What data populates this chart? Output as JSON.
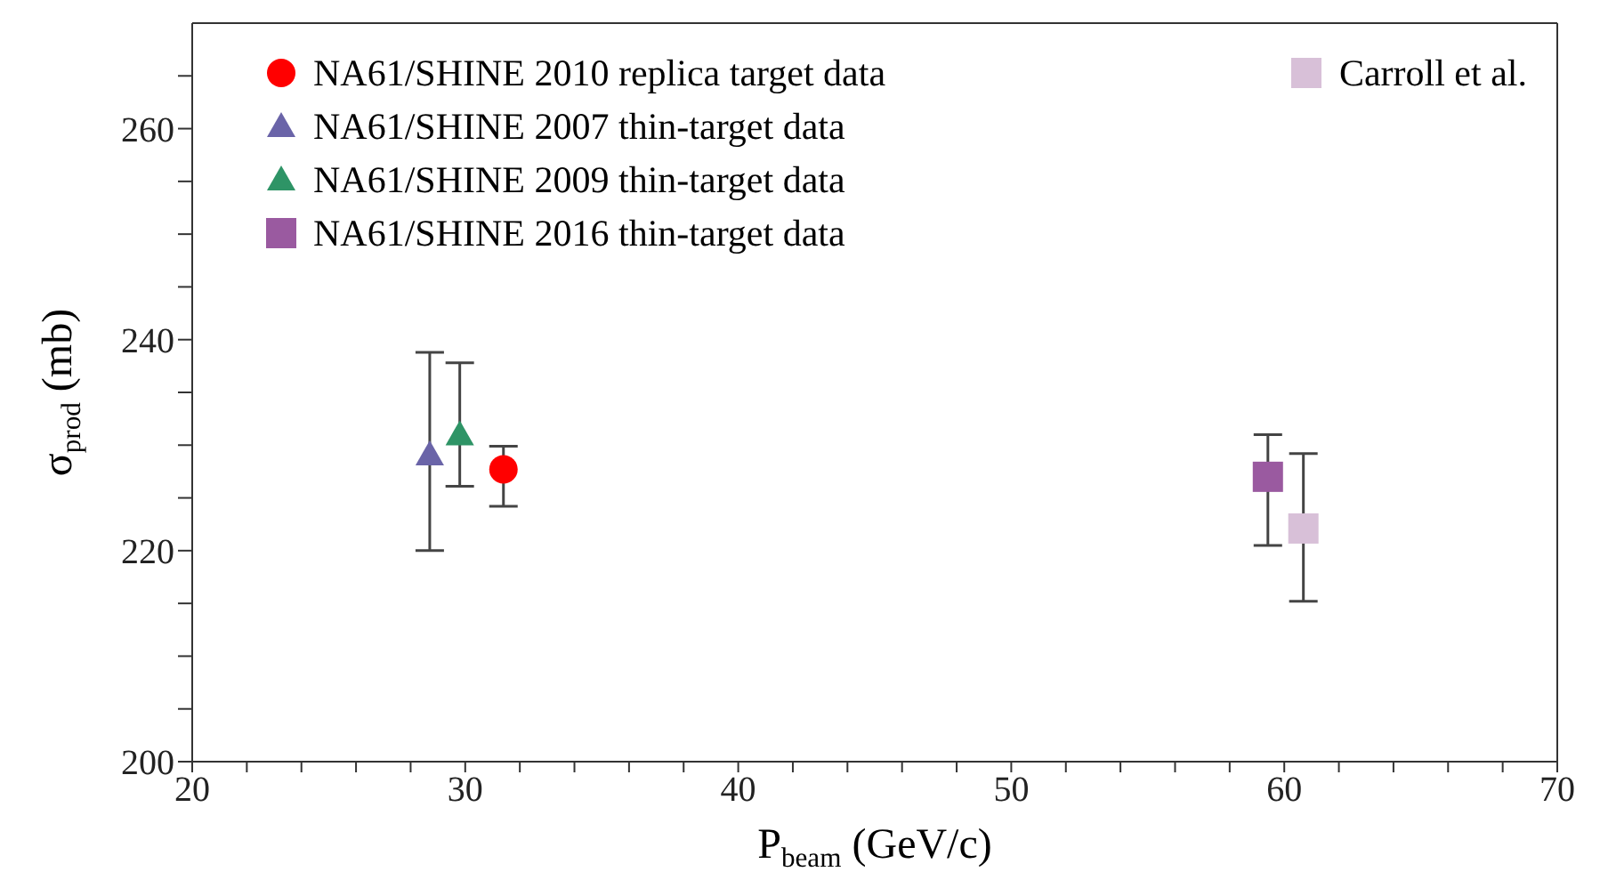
{
  "chart_data": {
    "type": "scatter",
    "xlabel": "P$_{beam}$ (GeV/c)",
    "ylabel": "σ$_{prod}$ (mb)",
    "xlim": [
      20,
      70
    ],
    "xticks": [
      20,
      {
        "value": 22,
        "label": null
      },
      {
        "value": 24,
        "label": null
      },
      {
        "value": 26,
        "label": null
      },
      {
        "value": 28,
        "label": null
      },
      30,
      {
        "value": 32,
        "label": null
      },
      {
        "value": 34,
        "label": null
      },
      {
        "value": 36,
        "label": null
      },
      {
        "value": 38,
        "label": null
      },
      40,
      {
        "value": 42,
        "label": null
      },
      {
        "value": 44,
        "label": null
      },
      {
        "value": 46,
        "label": null
      },
      {
        "value": 48,
        "label": null
      },
      50,
      {
        "value": 52,
        "label": null
      },
      {
        "value": 54,
        "label": null
      },
      {
        "value": 56,
        "label": null
      },
      {
        "value": 58,
        "label": null
      },
      60,
      {
        "value": 62,
        "label": null
      },
      {
        "value": 64,
        "label": null
      },
      {
        "value": 66,
        "label": null
      },
      {
        "value": 68,
        "label": null
      },
      70
    ],
    "ylim": [
      200,
      270
    ],
    "yticks": [
      200,
      {
        "value": 205,
        "label": null
      },
      {
        "value": 210,
        "label": null
      },
      {
        "value": 215,
        "label": null
      },
      220,
      {
        "value": 225,
        "label": null
      },
      {
        "value": 230,
        "label": null
      },
      {
        "value": 235,
        "label": null
      },
      240,
      {
        "value": 245,
        "label": null
      },
      {
        "value": 250,
        "label": null
      },
      {
        "value": 255,
        "label": null
      },
      260,
      {
        "value": 265,
        "label": null
      }
    ],
    "legend": "top",
    "series": [
      {
        "name": "NA61/SHINE 2010 replica target data",
        "color": "#ff0000",
        "marker": "circle",
        "x": [
          31.4
        ],
        "values": [
          227.7
        ],
        "errors": [
          [
            224.2,
            229.9
          ]
        ]
      },
      {
        "name": "NA61/SHINE 2007 thin-target data",
        "color": "#6a64a8",
        "marker": "triangle",
        "x": [
          28.7
        ],
        "values": [
          229.1
        ],
        "errors": [
          [
            220.0,
            238.8
          ]
        ]
      },
      {
        "name": "NA61/SHINE 2009 thin-target data",
        "color": "#2e9466",
        "marker": "triangle",
        "x": [
          29.8
        ],
        "values": [
          231.0
        ],
        "errors": [
          [
            226.1,
            237.8
          ]
        ]
      },
      {
        "name": "NA61/SHINE 2016 thin-target data",
        "color": "#9a5aa0",
        "marker": "square",
        "x": [
          59.4
        ],
        "values": [
          227.0
        ],
        "errors": [
          [
            220.5,
            231.0
          ]
        ]
      },
      {
        "name": "Carroll et al.",
        "color": "#d8c0d8",
        "marker": "square",
        "x": [
          60.7
        ],
        "values": [
          222.1
        ],
        "errors": [
          [
            215.2,
            229.2
          ]
        ]
      }
    ]
  }
}
